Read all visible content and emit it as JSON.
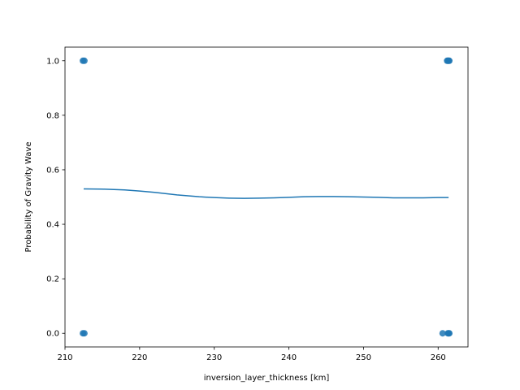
{
  "chart_data": {
    "type": "scatter",
    "title": "",
    "xlabel": "inversion_layer_thickness [km]",
    "ylabel": "Probability of Gravity Wave",
    "xlim": [
      210,
      264
    ],
    "ylim": [
      -0.05,
      1.05
    ],
    "xticks": [
      210,
      220,
      230,
      240,
      250,
      260
    ],
    "yticks": [
      0.0,
      0.2,
      0.4,
      0.6,
      0.8,
      1.0
    ],
    "grid": false,
    "legend": "none",
    "series": [
      {
        "kind": "scatter",
        "color": "#1f77b4",
        "points": [
          [
            212.4,
            1.0
          ],
          [
            212.6,
            1.0
          ],
          [
            212.4,
            0.0
          ],
          [
            212.6,
            0.0
          ],
          [
            261.2,
            1.0
          ],
          [
            261.4,
            1.0
          ],
          [
            261.5,
            1.0
          ],
          [
            261.3,
            1.0
          ],
          [
            260.6,
            0.0
          ],
          [
            261.3,
            0.0
          ],
          [
            261.5,
            0.0
          ],
          [
            261.4,
            0.0
          ]
        ]
      },
      {
        "kind": "line",
        "color": "#1f77b4",
        "points": [
          [
            212.5,
            0.53
          ],
          [
            215,
            0.529
          ],
          [
            218,
            0.526
          ],
          [
            220,
            0.522
          ],
          [
            222,
            0.517
          ],
          [
            225,
            0.508
          ],
          [
            228,
            0.501
          ],
          [
            230,
            0.498
          ],
          [
            232,
            0.496
          ],
          [
            234,
            0.495
          ],
          [
            236,
            0.496
          ],
          [
            238,
            0.497
          ],
          [
            240,
            0.499
          ],
          [
            242,
            0.501
          ],
          [
            244,
            0.502
          ],
          [
            246,
            0.502
          ],
          [
            248,
            0.501
          ],
          [
            250,
            0.5
          ],
          [
            252,
            0.499
          ],
          [
            254,
            0.497
          ],
          [
            256,
            0.497
          ],
          [
            258,
            0.497
          ],
          [
            260,
            0.498
          ],
          [
            261.4,
            0.498
          ]
        ]
      }
    ]
  }
}
